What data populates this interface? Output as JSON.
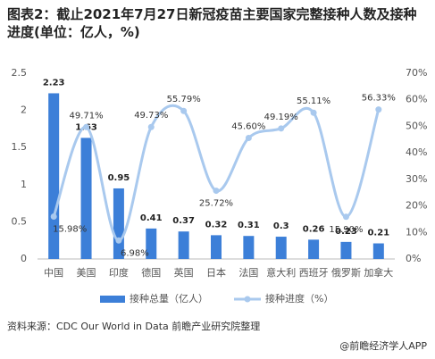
{
  "chart_data": {
    "type": "bar-line",
    "title": "图表2：截止2021年7月27日新冠疫苗主要国家完整接种人数及接种进度(单位：亿人，%)",
    "categories": [
      "中国",
      "美国",
      "印度",
      "德国",
      "英国",
      "日本",
      "法国",
      "意大利",
      "西班牙",
      "俄罗斯",
      "加拿大"
    ],
    "series": [
      {
        "name": "接种总量（亿人）",
        "color": "#3c7fd8",
        "values": [
          2.23,
          1.63,
          0.95,
          0.41,
          0.37,
          0.32,
          0.31,
          0.3,
          0.26,
          0.23,
          0.21
        ]
      },
      {
        "name": "接种进度（%）",
        "color": "#a9c9ee",
        "axis": "y2",
        "values": [
          15.98,
          49.71,
          6.98,
          49.73,
          55.79,
          25.72,
          45.6,
          49.19,
          55.11,
          15.9,
          56.33
        ],
        "value_labels": [
          "15.98%",
          "49.71%",
          "6.98%",
          "49.73%",
          "55.79%",
          "25.72%",
          "45.60%",
          "49.19%",
          "55.11%",
          "15.90%",
          "56.33%"
        ]
      }
    ],
    "ylim": [
      0,
      2.5
    ],
    "yticks": [
      0,
      0.5,
      1,
      1.5,
      2,
      2.5
    ],
    "y2lim": [
      0,
      70
    ],
    "y2ticks": [
      {
        "value": 0,
        "label": "0%"
      },
      {
        "value": 10,
        "label": "10%"
      },
      {
        "value": 20,
        "label": "20%"
      },
      {
        "value": 30,
        "label": "30%"
      },
      {
        "value": 40,
        "label": "40%"
      },
      {
        "value": 50,
        "label": "50%"
      },
      {
        "value": 60,
        "label": "60%"
      },
      {
        "value": 70,
        "label": "70%"
      }
    ],
    "source": "资料来源：CDC Our World in Data 前瞻产业研究院整理",
    "footer": "@前瞻经济学人APP"
  }
}
